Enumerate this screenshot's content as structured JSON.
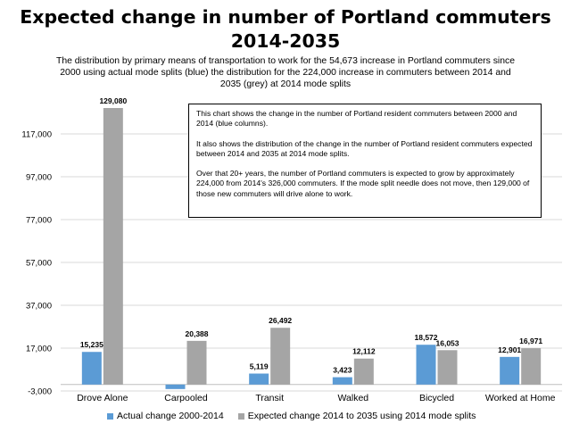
{
  "title_line1": "Expected change in number of Portland commuters",
  "title_line2": "2014-2035",
  "subtitle_line1": "The distribution by primary means of transportation to work for the 54,673 increase in Portland commuters since",
  "subtitle_line2": "2000 using actual mode splits (blue) the distribution for the 224,000 increase in commuters between 2014 and",
  "subtitle_line3": "2035 (grey) at 2014 mode splits",
  "note": {
    "p1": "This chart shows the change in the number of Portland resident commuters between 2000 and 2014 (blue columns).",
    "p2": "It also shows the distribution of the change in the number of Portland resident commuters expected between 2014 and 2035 at 2014 mode splits.",
    "p3": "Over that 20+ years, the number of Portland commuters is expected to grow by approximately 224,000 from 2014's 326,000 commuters. If the mode split needle does not move, then 129,000 of those new commuters will drive alone to work."
  },
  "colors": {
    "actual": "#5b9bd5",
    "expected": "#a5a5a5",
    "grid": "#d9d9d9"
  },
  "chart_data": {
    "type": "bar",
    "categories": [
      "Drove Alone",
      "Carpooled",
      "Transit",
      "Walked",
      "Bicycled",
      "Worked at Home"
    ],
    "series": [
      {
        "name": "Actual change 2000-2014",
        "values": [
          15235,
          -2100,
          5119,
          3423,
          18572,
          12901
        ],
        "labels": [
          "15,235",
          "",
          "5,119",
          "3,423",
          "18,572",
          "12,901"
        ]
      },
      {
        "name": "Expected change 2014 to 2035 using 2014 mode splits",
        "values": [
          129080,
          20388,
          26492,
          12112,
          16053,
          16971
        ],
        "labels": [
          "129,080",
          "20,388",
          "26,492",
          "12,112",
          "16,053",
          "16,971"
        ]
      }
    ],
    "ylim": [
      -3000,
      137000
    ],
    "yticks": [
      -3000,
      17000,
      37000,
      57000,
      77000,
      97000,
      117000
    ],
    "ytick_labels": [
      "-3,000",
      "17,000",
      "37,000",
      "57,000",
      "77,000",
      "97,000",
      "117,000"
    ],
    "grid": true,
    "legend": "bottom"
  }
}
